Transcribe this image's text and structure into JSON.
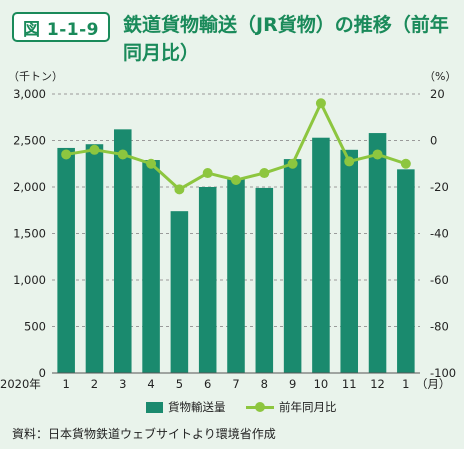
{
  "header": {
    "figure_label": "図 1-1-9",
    "title": "鉄道貨物輸送（JR貨物）の推移（前年同月比）"
  },
  "chart_data": {
    "type": "bar+line",
    "left_unit": "（千トン）",
    "right_unit": "（%）",
    "x_unit": "（月）",
    "year_label": "2020年",
    "categories": [
      "1",
      "2",
      "3",
      "4",
      "5",
      "6",
      "7",
      "8",
      "9",
      "10",
      "11",
      "12",
      "1"
    ],
    "left_axis": {
      "min": 0,
      "max": 3000,
      "ticks": [
        "0",
        "500",
        "1,000",
        "1,500",
        "2,000",
        "2,500",
        "3,000"
      ]
    },
    "right_axis": {
      "min": -100,
      "max": 20,
      "ticks": [
        "-100",
        "-80",
        "-60",
        "-40",
        "-20",
        "0",
        "20"
      ]
    },
    "grid": "dashed horizontal",
    "legend_position": "bottom",
    "series": [
      {
        "name": "貨物輸送量",
        "type": "bar",
        "axis": "left",
        "color": "#1a8a6e",
        "values": [
          2420,
          2460,
          2620,
          2290,
          1740,
          2000,
          2100,
          1990,
          2300,
          2530,
          2400,
          2580,
          2190
        ]
      },
      {
        "name": "前年同月比",
        "type": "line",
        "axis": "right",
        "color": "#8dc63f",
        "values": [
          -6,
          -4,
          -6,
          -10,
          -21,
          -14,
          -17,
          -14,
          -10,
          16,
          -9,
          -6,
          -10
        ]
      }
    ]
  },
  "source": "資料：日本貨物鉄道ウェブサイトより環境省作成"
}
